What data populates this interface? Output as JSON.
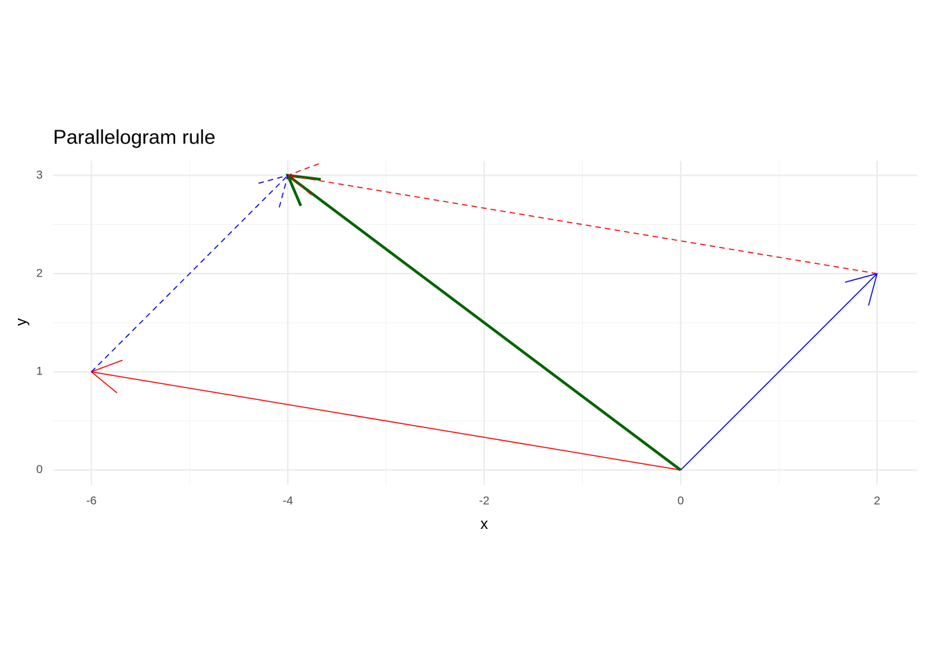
{
  "chart_data": {
    "type": "vector",
    "title": "Parallelogram rule",
    "x_label": "x",
    "y_label": "y",
    "xlim": [
      -6.39,
      2.41
    ],
    "ylim": [
      -0.15,
      3.15
    ],
    "xticks": [
      -6,
      -4,
      -2,
      0,
      2
    ],
    "yticks": [
      0,
      1,
      2,
      3
    ],
    "xminor": [
      -5,
      -3,
      -1,
      1
    ],
    "yminor": [
      0.5,
      1.5,
      2.5
    ],
    "grid": true,
    "series": [
      {
        "color": "#ff0000",
        "linetype": "solid",
        "linewidth": 1.5,
        "x": [
          0,
          -6
        ],
        "y": [
          0,
          1
        ]
      },
      {
        "color": "#0000ff",
        "linetype": "solid",
        "linewidth": 1.5,
        "x": [
          0,
          2
        ],
        "y": [
          0,
          2
        ]
      },
      {
        "color": "#006400",
        "linetype": "solid",
        "linewidth": 4,
        "x": [
          0,
          -4
        ],
        "y": [
          0,
          3
        ]
      },
      {
        "color": "#ff0000",
        "linetype": "dashed",
        "linewidth": 1.5,
        "x": [
          2,
          -4
        ],
        "y": [
          2,
          3
        ]
      },
      {
        "color": "#0000ff",
        "linetype": "dashed",
        "linewidth": 1.5,
        "x": [
          -6,
          -4
        ],
        "y": [
          1,
          3
        ]
      }
    ]
  }
}
